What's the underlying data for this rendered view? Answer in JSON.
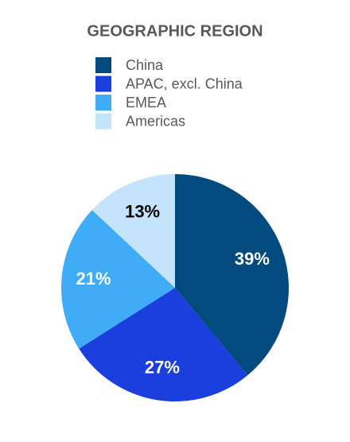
{
  "chart_data": {
    "type": "pie",
    "title": "GEOGRAPHIC REGION",
    "categories": [
      "China",
      "APAC, excl. China",
      "EMEA",
      "Americas"
    ],
    "values": [
      39,
      27,
      21,
      13
    ],
    "value_labels": [
      "39%",
      "27%",
      "21%",
      "13%"
    ],
    "colors": [
      "#034a7e",
      "#1b3fdc",
      "#40abf6",
      "#c4e4fb"
    ]
  }
}
